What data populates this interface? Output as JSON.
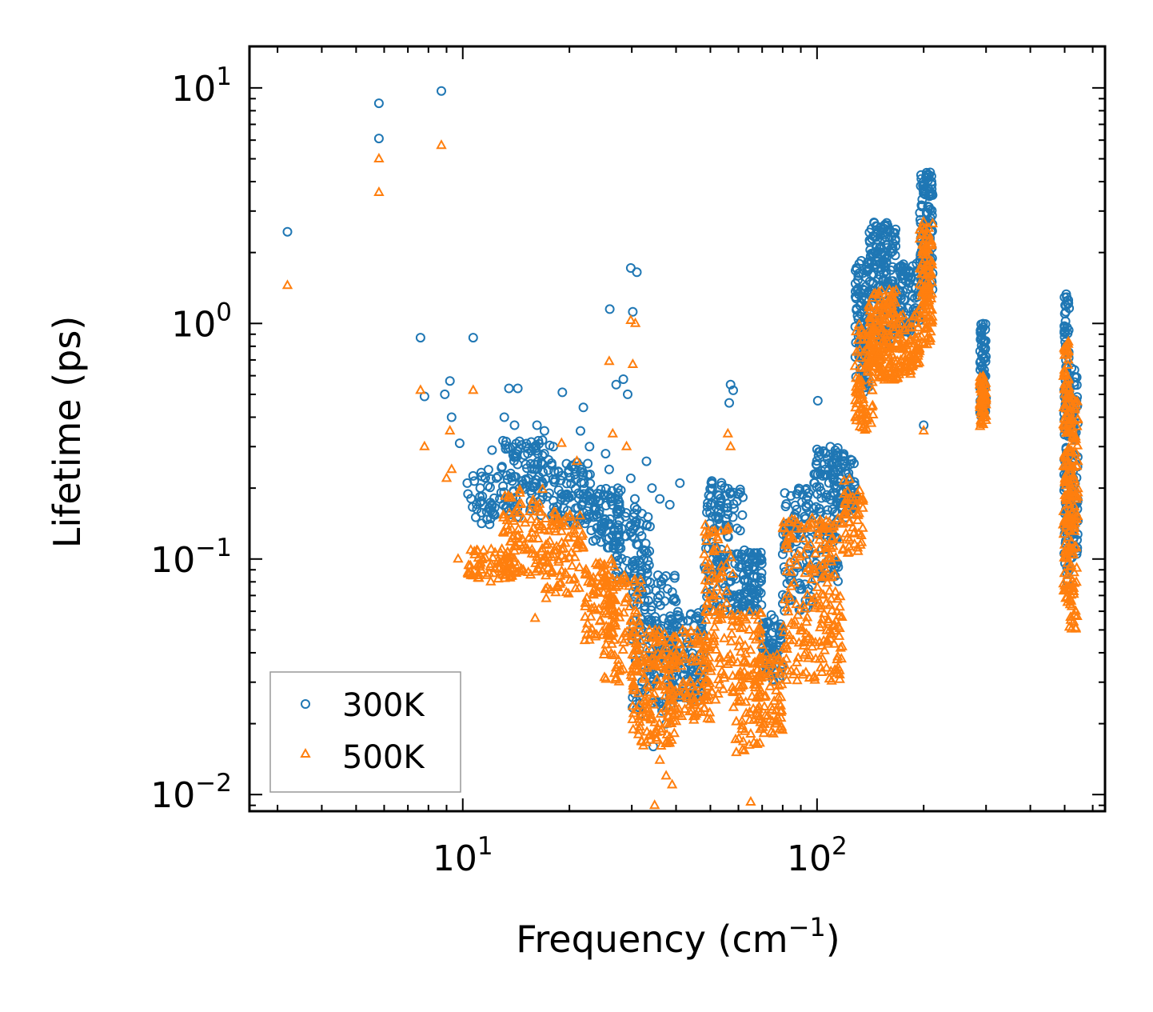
{
  "chart_data": {
    "type": "scatter",
    "xscale": "log",
    "yscale": "log",
    "xlabel": "Frequency (cm",
    "xlabel_sup": "−1",
    "xlabel_end": ")",
    "ylabel": "Lifetime (ps)",
    "xlim": [
      2.5,
      650
    ],
    "ylim": [
      0.0085,
      15
    ],
    "x_ticks": [
      {
        "value": 10,
        "base": "10",
        "exp": "1"
      },
      {
        "value": 100,
        "base": "10",
        "exp": "2"
      }
    ],
    "y_ticks": [
      {
        "value": 10,
        "base": "10",
        "exp": "1"
      },
      {
        "value": 1,
        "base": "10",
        "exp": "0"
      },
      {
        "value": 0.1,
        "base": "10",
        "exp": "−1"
      },
      {
        "value": 0.01,
        "base": "10",
        "exp": "−2"
      }
    ],
    "legend_position": "lower-left",
    "series": [
      {
        "name": "300K",
        "color": "#1f77b4",
        "marker": "circle",
        "points": [
          [
            3.2,
            2.45
          ],
          [
            5.8,
            8.6
          ],
          [
            5.8,
            6.1
          ],
          [
            8.7,
            9.7
          ],
          [
            7.6,
            0.87
          ],
          [
            10.7,
            0.87
          ],
          [
            7.8,
            0.49
          ],
          [
            9.2,
            0.57
          ],
          [
            8.9,
            0.5
          ],
          [
            9.3,
            0.4
          ],
          [
            9.8,
            0.31
          ],
          [
            10.3,
            0.21
          ],
          [
            11.2,
            0.2
          ],
          [
            12.1,
            0.29
          ],
          [
            13.1,
            0.4
          ],
          [
            13.5,
            0.53
          ],
          [
            14.0,
            0.37
          ],
          [
            14.3,
            0.53
          ],
          [
            15.1,
            0.3
          ],
          [
            16.2,
            0.37
          ],
          [
            17.0,
            0.35
          ],
          [
            18.0,
            0.3
          ],
          [
            19.1,
            0.51
          ],
          [
            20.4,
            0.25
          ],
          [
            21.5,
            0.35
          ],
          [
            21.9,
            0.44
          ],
          [
            22.8,
            0.3
          ],
          [
            24.0,
            0.19
          ],
          [
            25.3,
            0.28
          ],
          [
            25.9,
            0.24
          ],
          [
            27.1,
            0.55
          ],
          [
            28.4,
            0.58
          ],
          [
            29.2,
            0.5
          ],
          [
            29.8,
            0.22
          ],
          [
            30.6,
            0.18
          ],
          [
            33.0,
            0.26
          ],
          [
            34.2,
            0.2
          ],
          [
            36.0,
            0.18
          ],
          [
            38.4,
            0.17
          ],
          [
            41.0,
            0.21
          ],
          [
            26.0,
            1.15
          ],
          [
            29.8,
            1.72
          ],
          [
            31.0,
            1.65
          ],
          [
            30.2,
            1.12
          ],
          [
            57.0,
            0.55
          ],
          [
            58.0,
            0.52
          ],
          [
            56.5,
            0.46
          ],
          [
            100.5,
            0.47
          ],
          [
            200.0,
            0.37
          ],
          [
            37.5,
            0.02
          ],
          [
            34.5,
            0.016
          ],
          [
            42.0,
            0.027
          ],
          [
            48.0,
            0.04
          ],
          [
            45.0,
            0.052
          ]
        ],
        "clusters": [
          {
            "x": [
              10.3,
              12.8
            ],
            "y": [
              0.14,
              0.24
            ],
            "n": 40
          },
          {
            "x": [
              12.8,
              18.0
            ],
            "y": [
              0.15,
              0.32
            ],
            "n": 120
          },
          {
            "x": [
              18.0,
              23.0
            ],
            "y": [
              0.14,
              0.26
            ],
            "n": 90
          },
          {
            "x": [
              23.0,
              28.0
            ],
            "y": [
              0.11,
              0.2
            ],
            "n": 80
          },
          {
            "x": [
              27.0,
              34.0
            ],
            "y": [
              0.08,
              0.17
            ],
            "n": 80
          },
          {
            "x": [
              30.0,
              40.0
            ],
            "y": [
              0.022,
              0.09
            ],
            "n": 150
          },
          {
            "x": [
              38.0,
              48.0
            ],
            "y": [
              0.025,
              0.06
            ],
            "n": 120
          },
          {
            "x": [
              48.0,
              55.0
            ],
            "y": [
              0.06,
              0.24
            ],
            "n": 90
          },
          {
            "x": [
              55.0,
              62.0
            ],
            "y": [
              0.06,
              0.2
            ],
            "n": 60
          },
          {
            "x": [
              62.0,
              70.0
            ],
            "y": [
              0.06,
              0.11
            ],
            "n": 80
          },
          {
            "x": [
              70.0,
              80.0
            ],
            "y": [
              0.03,
              0.058
            ],
            "n": 70
          },
          {
            "x": [
              80.0,
              98.0
            ],
            "y": [
              0.06,
              0.2
            ],
            "n": 100
          },
          {
            "x": [
              98.0,
              115.0
            ],
            "y": [
              0.08,
              0.3
            ],
            "n": 110
          },
          {
            "x": [
              110.0,
              128.0
            ],
            "y": [
              0.15,
              0.28
            ],
            "n": 70
          },
          {
            "x": [
              128.0,
              140.0
            ],
            "y": [
              0.5,
              1.9
            ],
            "n": 90
          },
          {
            "x": [
              140.0,
              168.0
            ],
            "y": [
              0.8,
              2.7
            ],
            "n": 180
          },
          {
            "x": [
              168.0,
              195.0
            ],
            "y": [
              0.9,
              1.8
            ],
            "n": 80
          },
          {
            "x": [
              195.0,
              212.0
            ],
            "y": [
              1.3,
              4.4
            ],
            "n": 120
          },
          {
            "x": [
              288.0,
              300.0
            ],
            "y": [
              0.4,
              1.0
            ],
            "n": 70
          },
          {
            "x": [
              498.0,
              515.0
            ],
            "y": [
              0.08,
              1.4
            ],
            "n": 110
          },
          {
            "x": [
              515.0,
              545.0
            ],
            "y": [
              0.1,
              0.65
            ],
            "n": 110
          }
        ]
      },
      {
        "name": "500K",
        "color": "#ff7f0e",
        "marker": "triangle",
        "points": [
          [
            3.2,
            1.45
          ],
          [
            5.8,
            5.0
          ],
          [
            5.8,
            3.6
          ],
          [
            8.7,
            5.7
          ],
          [
            7.6,
            0.52
          ],
          [
            10.7,
            0.52
          ],
          [
            7.8,
            0.3
          ],
          [
            9.0,
            0.22
          ],
          [
            9.3,
            0.24
          ],
          [
            9.7,
            0.1
          ],
          [
            9.2,
            0.35
          ],
          [
            12.0,
            0.08
          ],
          [
            16.0,
            0.056
          ],
          [
            17.2,
            0.068
          ],
          [
            19.0,
            0.31
          ],
          [
            21.0,
            0.26
          ],
          [
            25.9,
            0.69
          ],
          [
            26.5,
            0.34
          ],
          [
            29.0,
            0.3
          ],
          [
            29.8,
            1.03
          ],
          [
            30.7,
            1.0
          ],
          [
            30.2,
            0.67
          ],
          [
            34.8,
            0.009
          ],
          [
            65.0,
            0.0093
          ],
          [
            57.0,
            0.3
          ],
          [
            56.0,
            0.34
          ],
          [
            200.0,
            0.35
          ],
          [
            37.5,
            0.012
          ],
          [
            39.0,
            0.011
          ],
          [
            36.0,
            0.014
          ]
        ],
        "clusters": [
          {
            "x": [
              10.3,
              14.0
            ],
            "y": [
              0.082,
              0.11
            ],
            "n": 70
          },
          {
            "x": [
              13.0,
              17.0
            ],
            "y": [
              0.085,
              0.2
            ],
            "n": 90
          },
          {
            "x": [
              17.0,
              22.0
            ],
            "y": [
              0.07,
              0.16
            ],
            "n": 90
          },
          {
            "x": [
              22.0,
              27.0
            ],
            "y": [
              0.045,
              0.1
            ],
            "n": 90
          },
          {
            "x": [
              25.0,
              32.0
            ],
            "y": [
              0.03,
              0.085
            ],
            "n": 90
          },
          {
            "x": [
              30.0,
              40.0
            ],
            "y": [
              0.016,
              0.05
            ],
            "n": 150
          },
          {
            "x": [
              38.0,
              50.0
            ],
            "y": [
              0.02,
              0.05
            ],
            "n": 110
          },
          {
            "x": [
              48.0,
              58.0
            ],
            "y": [
              0.025,
              0.14
            ],
            "n": 110
          },
          {
            "x": [
              58.0,
              70.0
            ],
            "y": [
              0.015,
              0.06
            ],
            "n": 100
          },
          {
            "x": [
              68.0,
              80.0
            ],
            "y": [
              0.018,
              0.04
            ],
            "n": 70
          },
          {
            "x": [
              80.0,
              100.0
            ],
            "y": [
              0.03,
              0.15
            ],
            "n": 110
          },
          {
            "x": [
              100.0,
              118.0
            ],
            "y": [
              0.03,
              0.15
            ],
            "n": 110
          },
          {
            "x": [
              118.0,
              135.0
            ],
            "y": [
              0.1,
              0.22
            ],
            "n": 50
          },
          {
            "x": [
              128.0,
              145.0
            ],
            "y": [
              0.35,
              1.0
            ],
            "n": 90
          },
          {
            "x": [
              140.0,
              170.0
            ],
            "y": [
              0.57,
              1.4
            ],
            "n": 180
          },
          {
            "x": [
              170.0,
              195.0
            ],
            "y": [
              0.6,
              1.1
            ],
            "n": 70
          },
          {
            "x": [
              195.0,
              212.0
            ],
            "y": [
              0.8,
              2.7
            ],
            "n": 120
          },
          {
            "x": [
              288.0,
              300.0
            ],
            "y": [
              0.36,
              0.6
            ],
            "n": 60
          },
          {
            "x": [
              495.0,
              515.0
            ],
            "y": [
              0.065,
              0.85
            ],
            "n": 120
          },
          {
            "x": [
              515.0,
              545.0
            ],
            "y": [
              0.05,
              0.5
            ],
            "n": 120
          }
        ]
      }
    ]
  }
}
